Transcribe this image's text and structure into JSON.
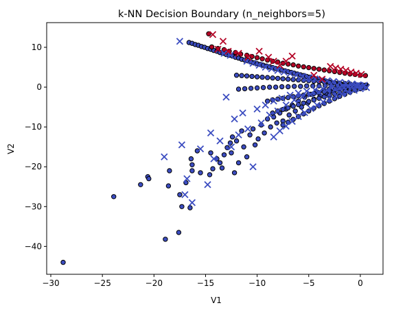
{
  "chart_data": {
    "type": "scatter",
    "title": "k-NN Decision Boundary (n_neighbors=5)",
    "xlabel": "V1",
    "ylabel": "V2",
    "xlim": [
      -30.4,
      2.2
    ],
    "ylim": [
      -47,
      16.2
    ],
    "xticks": [
      -30,
      -25,
      -20,
      -15,
      -10,
      -5,
      0
    ],
    "yticks": [
      10,
      0,
      -10,
      -20,
      -30,
      -40
    ],
    "grid": false,
    "legend": "none",
    "colors": {
      "class_blue": "#3b4cc0",
      "class_red": "#b40426",
      "edge": "#000000"
    },
    "series": [
      {
        "marker": "circle",
        "color": "#3b4cc0",
        "x": [
          -28.8,
          -23.9,
          -21.3,
          -20.6,
          -20.5,
          -18.9,
          -18.6,
          -18.5,
          -17.6,
          -17.5,
          -17.3,
          -16.5,
          -16.3,
          -16.9,
          -16.4,
          -16.3,
          -15.8,
          -15.5,
          -14.6,
          -14.5,
          -14.3,
          -13.9,
          -13.6,
          -13.4,
          -13.2,
          -12.9,
          -12.6,
          -12.5,
          -12.4,
          -12.2,
          -12.0,
          -11.8,
          -11.5,
          -11.3,
          -11.0,
          -10.7,
          -10.4,
          -10.2,
          -9.9,
          -9.6,
          -9.3,
          -9.0,
          -8.7,
          -8.4,
          -8.1,
          -7.8,
          -7.5,
          -7.2,
          -6.9,
          -6.6,
          -6.3,
          -6.0,
          -5.7,
          -5.4,
          -5.1,
          -4.8,
          -4.5,
          -4.2,
          -3.9,
          -3.6,
          -3.3,
          -3.0,
          -2.7,
          -2.4,
          -2.1,
          -1.8,
          -1.5,
          -1.2,
          -0.9,
          -0.6,
          -0.3,
          0.0,
          0.3,
          0.6,
          -16.6,
          -16.3,
          -16.0,
          -15.7,
          -15.4,
          -15.1,
          -14.8,
          -14.5,
          -14.2,
          -13.9,
          -13.6,
          -13.3,
          -13.0,
          -12.7,
          -12.4,
          -12.1,
          -11.8,
          -11.5,
          -11.2,
          -10.9,
          -10.6,
          -10.3,
          -10.0,
          -9.7,
          -9.4,
          -9.1,
          -8.8,
          -8.5,
          -8.2,
          -7.9,
          -7.6,
          -7.3,
          -7.0,
          -6.7,
          -6.4,
          -6.1,
          -5.8,
          -5.5,
          -5.2,
          -4.9,
          -4.6,
          -4.3,
          -4.0,
          -3.7,
          -3.4,
          -3.1,
          -2.8,
          -2.5,
          -2.2,
          -1.9,
          -1.6,
          -1.3,
          -1.0,
          -0.7,
          -0.4,
          -0.1,
          0.2,
          -12.0,
          -11.5,
          -11.0,
          -10.5,
          -10.0,
          -9.5,
          -9.0,
          -8.5,
          -8.0,
          -7.5,
          -7.0,
          -6.5,
          -6.0,
          -5.5,
          -5.0,
          -4.5,
          -4.0,
          -3.5,
          -3.0,
          -2.5,
          -2.0,
          -1.5,
          -1.0,
          -0.5,
          0.0,
          0.5,
          -11.8,
          -11.2,
          -10.6,
          -10.0,
          -9.4,
          -8.8,
          -8.2,
          -7.6,
          -7.0,
          -6.4,
          -5.8,
          -5.2,
          -4.6,
          -4.0,
          -3.4,
          -2.8,
          -2.2,
          -1.6,
          -1.0,
          -0.4,
          0.2,
          -9.0,
          -8.5,
          -8.0,
          -7.5,
          -7.0,
          -6.5,
          -6.0,
          -5.5,
          -5.0,
          -4.5,
          -4.0,
          -3.5,
          -3.0,
          -2.5,
          -2.0,
          -1.5,
          -1.0,
          -0.5,
          0.0,
          0.5,
          -8.5,
          -8.0,
          -7.5,
          -7.0,
          -6.5,
          -6.0,
          -5.5,
          -5.0,
          -4.5,
          -4.0,
          -3.5,
          -3.0,
          -2.5,
          -2.0,
          -1.5,
          -1.0,
          -0.5,
          0.0,
          0.5,
          -7.5,
          -7.0,
          -6.5,
          -6.0,
          -5.5,
          -5.0,
          -4.5,
          -4.0,
          -3.5,
          -3.0,
          -2.5,
          -2.0,
          -1.5,
          -1.0,
          -0.5,
          0.0,
          0.5
        ],
        "y": [
          -44.0,
          -27.5,
          -24.5,
          -22.5,
          -23.0,
          -38.2,
          -24.8,
          -21.0,
          -36.5,
          -27.0,
          -30.0,
          -30.3,
          -21.0,
          -24.0,
          -18.0,
          -19.5,
          -16.0,
          -21.5,
          -22.0,
          -16.5,
          -20.5,
          -18.0,
          -19.0,
          -20.3,
          -17.0,
          -15.2,
          -14.0,
          -16.5,
          -12.5,
          -21.5,
          -13.5,
          -19.0,
          -11.0,
          -15.0,
          -17.5,
          -12.0,
          -10.5,
          -14.5,
          -13.0,
          -9.5,
          -11.5,
          -8.0,
          -10.0,
          -7.5,
          -9.0,
          -6.5,
          -8.5,
          -5.5,
          -7.0,
          -4.5,
          -6.0,
          -3.5,
          -5.0,
          -2.5,
          -4.0,
          -1.8,
          -3.0,
          -1.2,
          -2.2,
          -0.8,
          -1.5,
          -0.5,
          -1.0,
          -0.3,
          -0.6,
          -0.2,
          -0.4,
          -0.1,
          -0.2,
          0.0,
          0.1,
          0.2,
          0.3,
          0.5,
          11.2,
          11.0,
          10.7,
          10.5,
          10.2,
          10.0,
          9.7,
          9.5,
          9.2,
          9.0,
          8.7,
          8.5,
          8.2,
          8.0,
          7.8,
          7.5,
          7.3,
          7.0,
          6.8,
          6.6,
          6.4,
          6.1,
          5.9,
          5.7,
          5.5,
          5.3,
          5.1,
          4.9,
          4.7,
          4.5,
          4.3,
          4.1,
          3.9,
          3.7,
          3.5,
          3.3,
          3.1,
          2.9,
          2.7,
          2.5,
          2.3,
          2.1,
          1.9,
          1.7,
          1.6,
          1.4,
          1.2,
          1.1,
          0.9,
          0.8,
          0.7,
          0.5,
          0.4,
          0.3,
          0.2,
          0.1,
          0.0,
          3.0,
          2.9,
          2.8,
          2.7,
          2.6,
          2.5,
          2.4,
          2.3,
          2.2,
          2.1,
          2.0,
          1.9,
          1.8,
          1.7,
          1.6,
          1.5,
          1.4,
          1.3,
          1.2,
          1.1,
          1.0,
          0.9,
          0.8,
          0.7,
          0.6,
          0.5,
          -0.5,
          -0.4,
          -0.3,
          -0.2,
          -0.1,
          0.0,
          0.0,
          0.1,
          0.1,
          0.2,
          0.2,
          0.3,
          0.3,
          0.3,
          0.4,
          0.4,
          0.4,
          0.4,
          0.5,
          0.5,
          0.5,
          -3.5,
          -3.2,
          -3.0,
          -2.8,
          -2.6,
          -2.4,
          -2.2,
          -2.0,
          -1.8,
          -1.6,
          -1.4,
          -1.2,
          -1.0,
          -0.8,
          -0.6,
          -0.5,
          -0.4,
          -0.3,
          -0.2,
          -0.1,
          -6.5,
          -6.0,
          -5.6,
          -5.2,
          -4.8,
          -4.4,
          -4.0,
          -3.6,
          -3.2,
          -2.8,
          -2.4,
          -2.0,
          -1.7,
          -1.4,
          -1.1,
          -0.8,
          -0.5,
          -0.3,
          -0.1,
          -9.5,
          -8.8,
          -8.1,
          -7.4,
          -6.7,
          -6.0,
          -5.3,
          -4.7,
          -4.1,
          -3.5,
          -2.9,
          -2.3,
          -1.8,
          -1.3,
          -0.8,
          -0.4,
          -0.1
        ]
      },
      {
        "marker": "circle",
        "color": "#b40426",
        "x": [
          -14.7,
          -14.4,
          -13.8,
          -13.2,
          -12.7,
          -12.1,
          -11.6,
          -11.0,
          -10.5,
          -10.0,
          -9.5,
          -9.0,
          -8.5,
          -8.0,
          -7.5,
          -7.0,
          -6.5,
          -6.0,
          -5.5,
          -5.0,
          -4.5,
          -4.0,
          -3.5,
          -3.0,
          -2.5,
          -2.0,
          -1.5,
          -1.0,
          -0.5,
          0.0,
          0.5
        ],
        "y": [
          13.4,
          10.1,
          9.7,
          9.4,
          9.0,
          8.7,
          8.3,
          8.0,
          7.7,
          7.4,
          7.1,
          6.8,
          6.5,
          6.3,
          6.0,
          5.8,
          5.6,
          5.3,
          5.1,
          4.9,
          4.7,
          4.5,
          4.3,
          4.1,
          3.9,
          3.7,
          3.5,
          3.3,
          3.2,
          3.0,
          2.9
        ]
      },
      {
        "marker": "x",
        "color": "#3b4cc0",
        "x": [
          -17.5,
          -19.0,
          -17.3,
          -17.0,
          -16.8,
          -16.3,
          -15.5,
          -14.8,
          -14.5,
          -14.2,
          -13.6,
          -13.0,
          -12.5,
          -12.2,
          -11.8,
          -11.4,
          -10.9,
          -10.4,
          -10.0,
          -9.6,
          -9.2,
          -8.8,
          -8.4,
          -8.0,
          -7.6,
          -7.2,
          -6.8,
          -6.4,
          -6.0,
          -5.6,
          -5.2,
          -4.8,
          -4.4,
          -4.0,
          -3.6,
          -3.2,
          -2.8,
          -2.4,
          -2.0,
          -1.6,
          -1.2,
          -0.8,
          -0.4,
          0.0,
          0.4,
          -13.2,
          -12.6,
          -11.0,
          -10.4,
          -9.8,
          -9.2,
          -8.6,
          -8.0,
          -7.4,
          -6.8,
          -6.2,
          -5.6,
          -5.0,
          -4.4,
          -3.8,
          -3.2,
          -2.6,
          -2.0,
          -1.4,
          -0.8,
          -0.2,
          -8.4,
          -7.8,
          -7.2,
          -6.6,
          -6.0,
          -5.4,
          -4.8,
          -4.2,
          -3.6,
          -3.0,
          -2.4,
          -1.8,
          -1.2,
          -0.6,
          0.0,
          0.6
        ],
        "y": [
          11.5,
          -17.5,
          -14.5,
          -27.0,
          -23.0,
          -29.0,
          -15.5,
          -24.5,
          -11.5,
          -18.0,
          -13.5,
          -2.5,
          -15.0,
          -8.0,
          -12.0,
          -6.5,
          -10.5,
          -20.0,
          -5.5,
          -9.0,
          -4.5,
          -7.0,
          -3.5,
          -6.0,
          -2.8,
          -4.5,
          -2.0,
          -3.2,
          -1.5,
          -2.4,
          -1.0,
          -1.8,
          -0.7,
          -1.2,
          -0.4,
          -0.8,
          -0.2,
          -0.5,
          0.0,
          -0.2,
          0.1,
          0.2,
          0.3,
          0.4,
          0.5,
          8.5,
          8.0,
          6.5,
          6.0,
          5.5,
          5.0,
          4.6,
          4.2,
          3.8,
          3.4,
          3.0,
          2.7,
          2.4,
          2.1,
          1.8,
          1.6,
          1.4,
          1.2,
          1.0,
          0.8,
          0.6,
          -12.5,
          -11.0,
          -9.8,
          -8.6,
          -7.4,
          -6.4,
          -5.4,
          -4.5,
          -3.7,
          -3.0,
          -2.3,
          -1.7,
          -1.2,
          -0.8,
          -0.4,
          -0.1
        ]
      },
      {
        "marker": "x",
        "color": "#b40426",
        "x": [
          -14.3,
          -13.8,
          -13.3,
          -12.8,
          -11.8,
          -10.9,
          -9.8,
          -8.9,
          -8.4,
          -7.8,
          -7.2,
          -6.6,
          -4.5,
          -3.7,
          -2.9,
          -2.4,
          -1.9,
          -1.4,
          -0.9,
          -0.4,
          0.1
        ],
        "y": [
          13.2,
          9.5,
          11.5,
          9.0,
          8.5,
          7.5,
          9.0,
          7.5,
          6.5,
          5.5,
          6.5,
          7.8,
          3.0,
          2.0,
          5.2,
          4.8,
          4.5,
          4.2,
          3.8,
          3.5,
          3.2
        ]
      }
    ]
  }
}
